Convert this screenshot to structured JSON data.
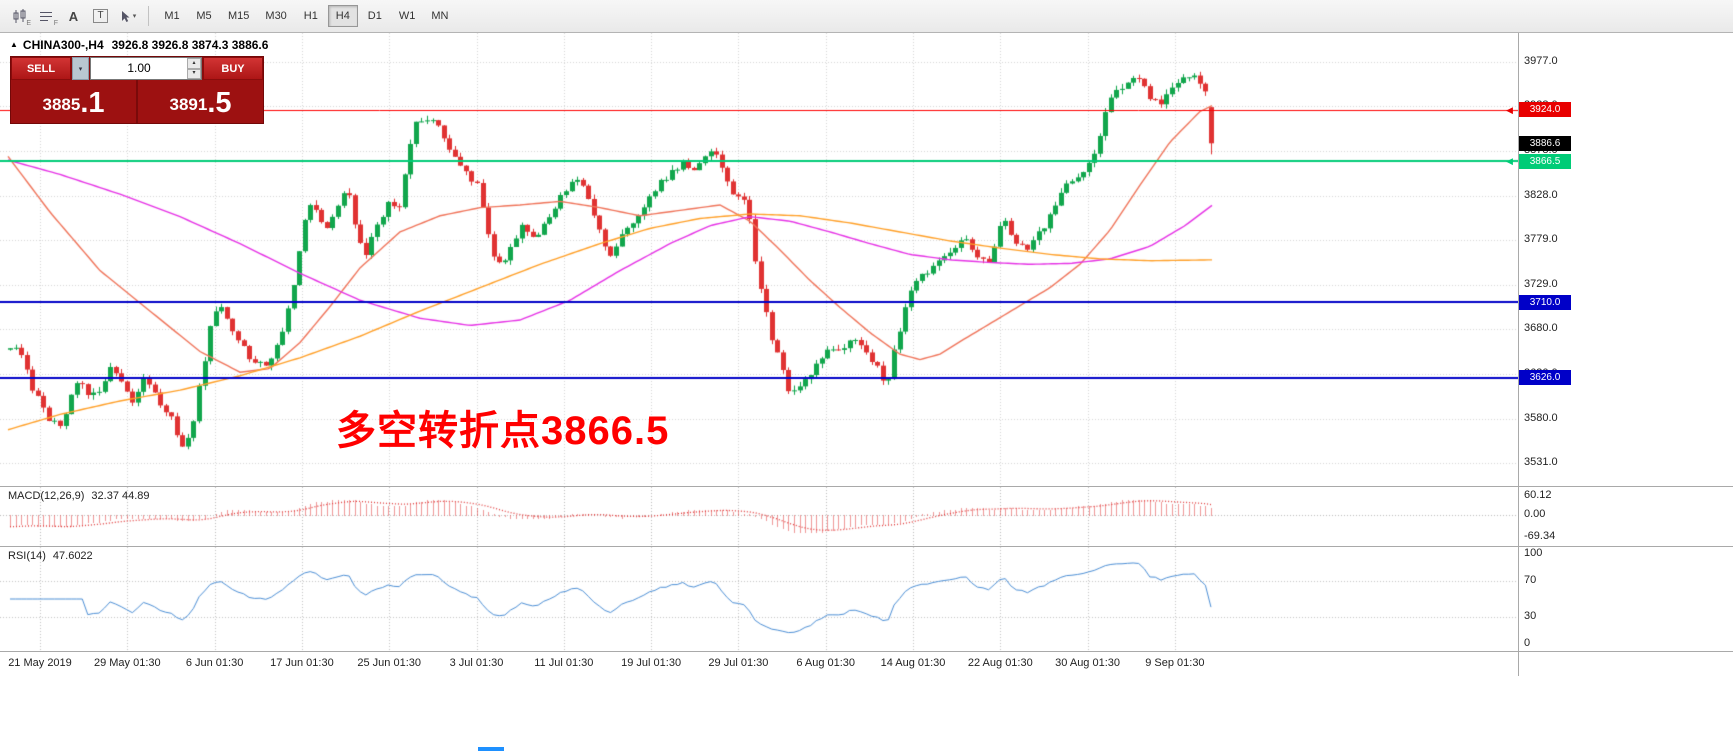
{
  "colors": {
    "up": "#11A64C",
    "down": "#E03232",
    "ma_fast": "#F0745A",
    "ma_mid": "#E632E6",
    "ma_slow": "#FFA028",
    "macd": "#E03232",
    "rsi": "#4C8FD6",
    "grid": "#D6D6D6",
    "line_red": "#FF0000",
    "line_green": "#00CC77",
    "line_blue": "#0000C8"
  },
  "toolbar": {
    "icons": [
      {
        "name": "chart-type-icon",
        "letter": "E"
      },
      {
        "name": "indicator-list-icon",
        "letter": "F"
      },
      {
        "name": "text-tool-icon",
        "letter": "A"
      },
      {
        "name": "symbol-box-icon",
        "letter": "T"
      },
      {
        "name": "cursor-tool-icon",
        "letter": ""
      }
    ],
    "timeframes": [
      "M1",
      "M5",
      "M15",
      "M30",
      "H1",
      "H4",
      "D1",
      "W1",
      "MN"
    ],
    "active_timeframe": "H4"
  },
  "chart_header": {
    "symbol": "CHINA300-,H4",
    "ohlc": "3926.8 3926.8 3874.3 3886.6"
  },
  "trade_panel": {
    "sell_label": "SELL",
    "buy_label": "BUY",
    "volume": "1.00",
    "sell_price": {
      "main": "3885",
      "pips": ".1"
    },
    "buy_price": {
      "main": "3891",
      "pips": ".5"
    }
  },
  "annotation": {
    "text": "多空转折点3866.5"
  },
  "price_axis": {
    "gridline_labels": [
      "3977.0",
      "3928.0",
      "3878.0",
      "3828.0",
      "3779.0",
      "3729.0",
      "3680.0",
      "3630.0",
      "3580.0",
      "3531.0"
    ],
    "gridline_values": [
      3977,
      3928,
      3878,
      3828,
      3779,
      3729,
      3680,
      3630,
      3580,
      3531
    ]
  },
  "badges": [
    {
      "label": "3924.0",
      "value": 3924.0,
      "color": "#E80000",
      "text": "#FFFFFF",
      "arrow": true
    },
    {
      "label": "3886.6",
      "value": 3886.6,
      "color": "#000000",
      "text": "#FFFFFF",
      "arrow": false
    },
    {
      "label": "3866.5",
      "value": 3866.5,
      "color": "#00CC77",
      "text": "#FFFFFF",
      "arrow": true
    },
    {
      "label": "3710.0",
      "value": 3710.0,
      "color": "#0000C8",
      "text": "#FFFFFF",
      "arrow": false
    },
    {
      "label": "3626.0",
      "value": 3626.0,
      "color": "#0000C8",
      "text": "#FFFFFF",
      "arrow": false
    }
  ],
  "time_axis": {
    "labels": [
      "21 May 2019",
      "29 May 01:30",
      "6 Jun 01:30",
      "17 Jun 01:30",
      "25 Jun 01:30",
      "3 Jul 01:30",
      "11 Jul 01:30",
      "19 Jul 01:30",
      "29 Jul 01:30",
      "6 Aug 01:30",
      "14 Aug 01:30",
      "22 Aug 01:30",
      "30 Aug 01:30",
      "9 Sep 01:30"
    ]
  },
  "macd_panel": {
    "title": "MACD(12,26,9)",
    "values": "32.37 44.89",
    "axis_labels": [
      "60.12",
      "0.00",
      "-69.34"
    ],
    "axis_values": [
      60.12,
      0,
      -69.34
    ]
  },
  "rsi_panel": {
    "title": "RSI(14)",
    "value": "47.6022",
    "axis_labels": [
      "100",
      "70",
      "30",
      "0"
    ],
    "axis_values": [
      100,
      70,
      30,
      0
    ],
    "levels": [
      70,
      30
    ]
  },
  "chart_data": {
    "type": "candlestick",
    "symbol": "CHINA300",
    "timeframe": "H4",
    "current_bar": {
      "open": 3926.8,
      "high": 3926.8,
      "low": 3874.3,
      "close": 3886.6
    },
    "y_range": [
      3505,
      4009
    ],
    "horizontal_lines": [
      {
        "value": 3924.0,
        "color": "#FF0000",
        "width": 1
      },
      {
        "value": 3866.5,
        "color": "#00CC77",
        "width": 2
      },
      {
        "value": 3710.0,
        "color": "#0000C8",
        "width": 2
      },
      {
        "value": 3626.0,
        "color": "#0000C8",
        "width": 2
      }
    ],
    "price_path_anchors": [
      [
        8,
        3655
      ],
      [
        18,
        3665
      ],
      [
        30,
        3620
      ],
      [
        45,
        3585
      ],
      [
        60,
        3570
      ],
      [
        70,
        3605
      ],
      [
        80,
        3625
      ],
      [
        90,
        3600
      ],
      [
        100,
        3615
      ],
      [
        112,
        3640
      ],
      [
        122,
        3620
      ],
      [
        132,
        3600
      ],
      [
        145,
        3625
      ],
      [
        158,
        3600
      ],
      [
        170,
        3585
      ],
      [
        182,
        3545
      ],
      [
        192,
        3570
      ],
      [
        200,
        3620
      ],
      [
        210,
        3680
      ],
      [
        218,
        3710
      ],
      [
        228,
        3690
      ],
      [
        238,
        3665
      ],
      [
        248,
        3650
      ],
      [
        258,
        3645
      ],
      [
        268,
        3640
      ],
      [
        278,
        3665
      ],
      [
        288,
        3700
      ],
      [
        298,
        3760
      ],
      [
        308,
        3820
      ],
      [
        316,
        3815
      ],
      [
        324,
        3790
      ],
      [
        332,
        3800
      ],
      [
        340,
        3825
      ],
      [
        348,
        3830
      ],
      [
        356,
        3795
      ],
      [
        364,
        3760
      ],
      [
        372,
        3785
      ],
      [
        380,
        3805
      ],
      [
        390,
        3820
      ],
      [
        400,
        3815
      ],
      [
        408,
        3880
      ],
      [
        416,
        3910
      ],
      [
        424,
        3915
      ],
      [
        432,
        3910
      ],
      [
        440,
        3905
      ],
      [
        448,
        3880
      ],
      [
        456,
        3870
      ],
      [
        464,
        3860
      ],
      [
        472,
        3845
      ],
      [
        480,
        3835
      ],
      [
        486,
        3790
      ],
      [
        494,
        3760
      ],
      [
        502,
        3750
      ],
      [
        512,
        3770
      ],
      [
        522,
        3800
      ],
      [
        530,
        3785
      ],
      [
        540,
        3790
      ],
      [
        550,
        3805
      ],
      [
        560,
        3825
      ],
      [
        570,
        3840
      ],
      [
        580,
        3845
      ],
      [
        590,
        3820
      ],
      [
        600,
        3790
      ],
      [
        608,
        3755
      ],
      [
        616,
        3775
      ],
      [
        626,
        3790
      ],
      [
        636,
        3805
      ],
      [
        646,
        3820
      ],
      [
        656,
        3835
      ],
      [
        666,
        3850
      ],
      [
        676,
        3860
      ],
      [
        686,
        3865
      ],
      [
        696,
        3855
      ],
      [
        706,
        3870
      ],
      [
        714,
        3885
      ],
      [
        722,
        3855
      ],
      [
        730,
        3835
      ],
      [
        740,
        3830
      ],
      [
        748,
        3815
      ],
      [
        756,
        3745
      ],
      [
        764,
        3705
      ],
      [
        772,
        3670
      ],
      [
        780,
        3640
      ],
      [
        790,
        3605
      ],
      [
        798,
        3610
      ],
      [
        806,
        3625
      ],
      [
        814,
        3635
      ],
      [
        822,
        3650
      ],
      [
        830,
        3660
      ],
      [
        838,
        3655
      ],
      [
        846,
        3665
      ],
      [
        854,
        3670
      ],
      [
        862,
        3655
      ],
      [
        870,
        3645
      ],
      [
        878,
        3635
      ],
      [
        886,
        3615
      ],
      [
        894,
        3655
      ],
      [
        902,
        3690
      ],
      [
        912,
        3725
      ],
      [
        922,
        3740
      ],
      [
        932,
        3750
      ],
      [
        942,
        3755
      ],
      [
        952,
        3765
      ],
      [
        962,
        3780
      ],
      [
        970,
        3775
      ],
      [
        978,
        3760
      ],
      [
        986,
        3750
      ],
      [
        994,
        3775
      ],
      [
        1002,
        3800
      ],
      [
        1010,
        3790
      ],
      [
        1018,
        3775
      ],
      [
        1026,
        3770
      ],
      [
        1034,
        3780
      ],
      [
        1042,
        3790
      ],
      [
        1052,
        3810
      ],
      [
        1060,
        3835
      ],
      [
        1070,
        3845
      ],
      [
        1080,
        3855
      ],
      [
        1090,
        3865
      ],
      [
        1098,
        3890
      ],
      [
        1106,
        3925
      ],
      [
        1114,
        3945
      ],
      [
        1122,
        3950
      ],
      [
        1130,
        3960
      ],
      [
        1138,
        3955
      ],
      [
        1146,
        3945
      ],
      [
        1154,
        3935
      ],
      [
        1162,
        3928
      ],
      [
        1170,
        3945
      ],
      [
        1178,
        3958
      ],
      [
        1186,
        3965
      ],
      [
        1194,
        3960
      ],
      [
        1202,
        3950
      ],
      [
        1208,
        3935
      ],
      [
        1215,
        3890
      ]
    ],
    "ma_lines": [
      {
        "name": "ma-fast-salmon",
        "color": "#F0745A",
        "anchors": [
          [
            8,
            3872
          ],
          [
            50,
            3810
          ],
          [
            100,
            3745
          ],
          [
            150,
            3700
          ],
          [
            200,
            3655
          ],
          [
            240,
            3632
          ],
          [
            270,
            3636
          ],
          [
            300,
            3665
          ],
          [
            330,
            3705
          ],
          [
            360,
            3748
          ],
          [
            400,
            3788
          ],
          [
            440,
            3806
          ],
          [
            480,
            3815
          ],
          [
            520,
            3818
          ],
          [
            560,
            3822
          ],
          [
            600,
            3815
          ],
          [
            640,
            3806
          ],
          [
            680,
            3812
          ],
          [
            720,
            3818
          ],
          [
            750,
            3800
          ],
          [
            780,
            3768
          ],
          [
            810,
            3734
          ],
          [
            840,
            3704
          ],
          [
            870,
            3676
          ],
          [
            900,
            3652
          ],
          [
            920,
            3646
          ],
          [
            940,
            3652
          ],
          [
            960,
            3666
          ],
          [
            990,
            3686
          ],
          [
            1020,
            3706
          ],
          [
            1050,
            3726
          ],
          [
            1080,
            3752
          ],
          [
            1110,
            3790
          ],
          [
            1140,
            3840
          ],
          [
            1170,
            3888
          ],
          [
            1200,
            3922
          ],
          [
            1215,
            3930
          ]
        ]
      },
      {
        "name": "ma-slow-magenta",
        "color": "#E632E6",
        "anchors": [
          [
            8,
            3868
          ],
          [
            60,
            3852
          ],
          [
            120,
            3830
          ],
          [
            180,
            3805
          ],
          [
            240,
            3775
          ],
          [
            300,
            3742
          ],
          [
            360,
            3712
          ],
          [
            420,
            3692
          ],
          [
            470,
            3684
          ],
          [
            520,
            3690
          ],
          [
            570,
            3712
          ],
          [
            620,
            3745
          ],
          [
            670,
            3775
          ],
          [
            710,
            3795
          ],
          [
            750,
            3805
          ],
          [
            790,
            3800
          ],
          [
            830,
            3788
          ],
          [
            870,
            3775
          ],
          [
            910,
            3763
          ],
          [
            950,
            3757
          ],
          [
            990,
            3754
          ],
          [
            1030,
            3752
          ],
          [
            1070,
            3753
          ],
          [
            1110,
            3758
          ],
          [
            1150,
            3772
          ],
          [
            1185,
            3795
          ],
          [
            1215,
            3820
          ]
        ]
      },
      {
        "name": "ma-slow-orange",
        "color": "#FFA028",
        "anchors": [
          [
            8,
            3568
          ],
          [
            60,
            3585
          ],
          [
            120,
            3600
          ],
          [
            180,
            3612
          ],
          [
            240,
            3628
          ],
          [
            300,
            3648
          ],
          [
            360,
            3672
          ],
          [
            420,
            3700
          ],
          [
            480,
            3726
          ],
          [
            540,
            3752
          ],
          [
            600,
            3775
          ],
          [
            650,
            3792
          ],
          [
            700,
            3803
          ],
          [
            750,
            3808
          ],
          [
            800,
            3806
          ],
          [
            850,
            3798
          ],
          [
            900,
            3788
          ],
          [
            950,
            3778
          ],
          [
            1000,
            3770
          ],
          [
            1050,
            3763
          ],
          [
            1100,
            3758
          ],
          [
            1150,
            3756
          ],
          [
            1215,
            3757
          ]
        ]
      }
    ],
    "macd": {
      "fast": 12,
      "slow": 26,
      "signal": 9,
      "last_values": [
        32.37,
        44.89
      ]
    },
    "rsi": {
      "period": 14,
      "last_value": 47.6022
    }
  }
}
